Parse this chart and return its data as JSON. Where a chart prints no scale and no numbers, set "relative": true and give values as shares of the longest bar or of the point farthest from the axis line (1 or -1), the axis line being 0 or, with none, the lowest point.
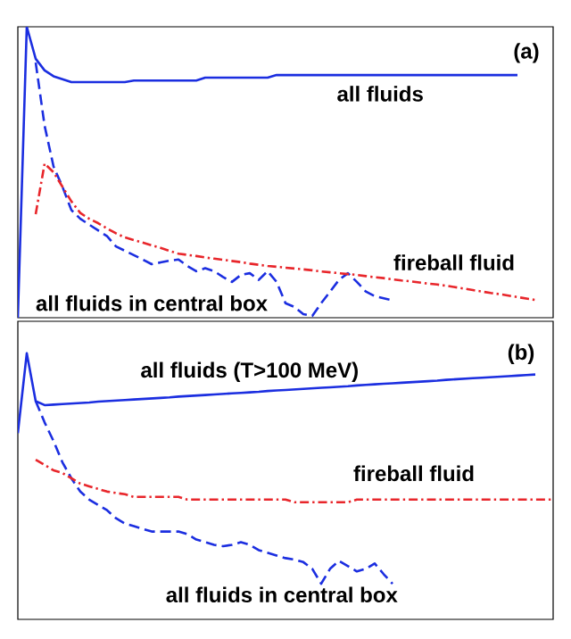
{
  "chart_data": [
    {
      "type": "line",
      "title": "(a)",
      "relative": true,
      "categories": [
        null,
        null,
        null,
        null,
        null,
        null,
        null,
        null,
        null,
        null,
        null,
        null,
        null,
        null,
        null,
        null,
        null,
        null,
        null,
        null,
        null,
        null,
        null,
        null,
        null,
        null,
        null,
        null,
        null,
        null,
        null,
        null,
        null,
        null,
        null,
        null,
        null,
        null,
        null,
        null,
        null,
        null,
        null,
        null,
        null,
        null,
        null,
        null,
        null,
        null,
        null,
        null,
        null,
        null,
        null,
        null,
        null,
        null,
        null,
        null,
        null
      ],
      "series": [
        {
          "name": "all fluids",
          "color": "#1b2ee0",
          "line_style": "solid",
          "values": [
            0,
            1.0,
            0.89,
            0.85,
            0.83,
            0.82,
            0.81,
            0.81,
            0.81,
            0.81,
            0.81,
            0.81,
            0.81,
            0.815,
            0.815,
            0.815,
            0.815,
            0.815,
            0.815,
            0.815,
            0.815,
            0.825,
            0.825,
            0.825,
            0.825,
            0.825,
            0.825,
            0.825,
            0.825,
            0.834,
            0.834,
            0.834,
            0.834,
            0.834,
            0.834,
            0.834,
            0.834,
            0.834,
            0.834,
            0.834,
            0.834,
            0.834,
            0.834,
            0.834,
            0.834,
            0.834,
            0.834,
            0.834,
            0.834,
            0.834,
            0.834,
            0.834,
            0.834,
            0.834,
            0.834,
            0.834,
            0.834,
            null,
            null,
            null,
            null
          ]
        },
        {
          "name": "all fluids in central box",
          "color": "#1b2ee0",
          "line_style": "dashed",
          "values": [
            null,
            null,
            0.877,
            0.66,
            0.52,
            0.45,
            0.37,
            0.34,
            0.32,
            0.3,
            0.28,
            0.245,
            0.23,
            0.215,
            0.2,
            0.184,
            0.19,
            0.196,
            0.2,
            0.178,
            0.16,
            0.17,
            0.16,
            0.14,
            0.123,
            0.147,
            0.153,
            0.13,
            0.16,
            0.123,
            0.05,
            0.037,
            0.012,
            0.006,
            0.05,
            0.09,
            0.13,
            0.153,
            0.123,
            0.09,
            0.074,
            0.067,
            0.06,
            null,
            null,
            null,
            null,
            null,
            null,
            null,
            null,
            null,
            null,
            null,
            null,
            null,
            null,
            null,
            null,
            null,
            null
          ]
        },
        {
          "name": "fireball fluid",
          "color": "#e8262b",
          "line_style": "dotted",
          "values": [
            null,
            null,
            0.356,
            0.53,
            0.5,
            0.45,
            0.4,
            0.36,
            0.34,
            0.325,
            0.307,
            0.29,
            0.276,
            0.267,
            0.258,
            0.249,
            0.24,
            0.23,
            0.22,
            0.216,
            0.212,
            0.207,
            0.203,
            0.199,
            0.195,
            0.191,
            0.186,
            0.182,
            0.178,
            0.175,
            0.172,
            0.169,
            0.166,
            0.163,
            0.159,
            0.156,
            0.153,
            0.15,
            0.147,
            0.143,
            0.139,
            0.136,
            0.132,
            0.128,
            0.125,
            0.121,
            0.117,
            0.114,
            0.11,
            0.105,
            0.1,
            0.095,
            0.09,
            0.085,
            0.081,
            0.076,
            0.071,
            0.066,
            0.061,
            null,
            null
          ]
        }
      ]
    },
    {
      "type": "line",
      "title": "(b)",
      "relative": true,
      "categories": [
        null,
        null,
        null,
        null,
        null,
        null,
        null,
        null,
        null,
        null,
        null,
        null,
        null,
        null,
        null,
        null,
        null,
        null,
        null,
        null,
        null,
        null,
        null,
        null,
        null,
        null,
        null,
        null,
        null,
        null,
        null,
        null,
        null,
        null,
        null,
        null,
        null,
        null,
        null,
        null,
        null,
        null,
        null,
        null,
        null,
        null,
        null,
        null,
        null,
        null,
        null,
        null,
        null,
        null,
        null,
        null,
        null,
        null,
        null,
        null,
        null
      ],
      "series": [
        {
          "name": "all fluids (T>100 MeV)",
          "color": "#1b2ee0",
          "line_style": "solid",
          "values": [
            0.7,
            1.0,
            0.82,
            0.805,
            0.807,
            0.809,
            0.811,
            0.813,
            0.815,
            0.818,
            0.82,
            0.822,
            0.824,
            0.826,
            0.828,
            0.83,
            0.832,
            0.834,
            0.837,
            0.839,
            0.841,
            0.843,
            0.845,
            0.847,
            0.849,
            0.851,
            0.853,
            0.855,
            0.858,
            0.86,
            0.862,
            0.864,
            0.866,
            0.868,
            0.87,
            0.872,
            0.874,
            0.876,
            0.879,
            0.881,
            0.883,
            0.885,
            0.887,
            0.889,
            0.891,
            0.893,
            0.895,
            0.897,
            0.9,
            0.902,
            0.904,
            0.906,
            0.908,
            0.91,
            0.912,
            0.914,
            0.916,
            0.918,
            0.92,
            null,
            null
          ]
        },
        {
          "name": "all fluids in central box",
          "color": "#1b2ee0",
          "line_style": "dashed",
          "values": [
            null,
            null,
            0.82,
            0.74,
            0.67,
            0.59,
            0.53,
            0.48,
            0.45,
            0.43,
            0.41,
            0.38,
            0.36,
            0.35,
            0.34,
            0.33,
            0.33,
            0.33,
            0.33,
            0.32,
            0.3,
            0.29,
            0.28,
            0.275,
            0.28,
            0.29,
            0.28,
            0.26,
            0.25,
            0.24,
            0.23,
            0.225,
            0.215,
            0.19,
            0.134,
            0.19,
            0.22,
            0.2,
            0.18,
            0.19,
            0.21,
            0.17,
            0.134,
            null,
            null,
            null,
            null,
            null,
            null,
            null,
            null,
            null,
            null,
            null,
            null,
            null,
            null,
            null,
            null,
            null,
            null
          ]
        },
        {
          "name": "fireball fluid",
          "color": "#e8262b",
          "line_style": "dotted",
          "values": [
            null,
            null,
            0.6,
            0.58,
            0.56,
            0.55,
            0.53,
            0.51,
            0.5,
            0.49,
            0.48,
            0.475,
            0.47,
            0.46,
            0.46,
            0.46,
            0.46,
            0.46,
            0.46,
            0.45,
            0.45,
            0.45,
            0.45,
            0.45,
            0.45,
            0.45,
            0.45,
            0.45,
            0.45,
            0.45,
            0.45,
            0.44,
            0.44,
            0.44,
            0.44,
            0.44,
            0.44,
            0.44,
            0.45,
            0.45,
            0.45,
            0.45,
            0.45,
            0.45,
            0.45,
            0.45,
            0.45,
            0.45,
            0.45,
            0.45,
            0.45,
            0.45,
            0.45,
            0.45,
            0.45,
            0.45,
            0.45,
            0.45,
            0.45,
            0.45,
            0.45
          ]
        }
      ]
    }
  ]
}
